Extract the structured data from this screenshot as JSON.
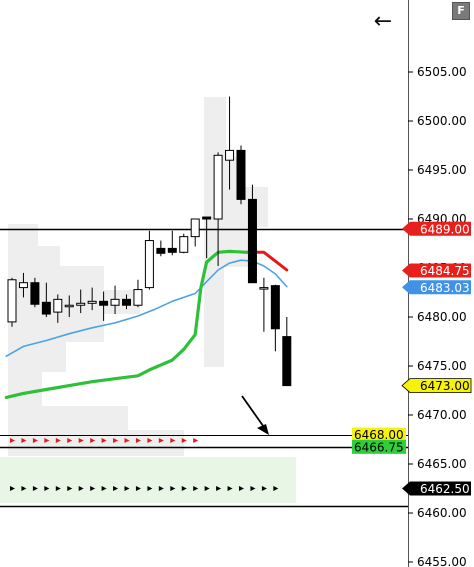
{
  "toolbar": {
    "back_icon": "left-arrow-icon",
    "back_glyph": "←",
    "format_button_label": "F"
  },
  "colors": {
    "ema_fast": "#e01b1b",
    "ema_mid": "#4aa3e8",
    "ema_slow": "#2fc03a",
    "level_black": "#000000",
    "tag_red": "#e8201c",
    "tag_blue": "#3f92e5",
    "tag_yellow": "#f6f20a",
    "tag_green": "#2fcf3a",
    "tag_black": "#000000",
    "profile_gray": "#eeeeee",
    "profile_green": "#e7f6e5"
  },
  "chart_data": {
    "type": "candlestick",
    "ylim": [
      6453.5,
      6510
    ],
    "y_ticks": [
      "6455.00",
      "6460.00",
      "6465.00",
      "6470.00",
      "6475.00",
      "6480.00",
      "6485.00",
      "6490.00",
      "6495.00",
      "6500.00",
      "6505.00"
    ],
    "candles": [
      {
        "o": 6479.5,
        "h": 6484.0,
        "l": 6479.0,
        "c": 6483.8
      },
      {
        "o": 6483.0,
        "h": 6484.5,
        "l": 6482.0,
        "c": 6483.5
      },
      {
        "o": 6483.5,
        "h": 6484.0,
        "l": 6481.0,
        "c": 6481.3
      },
      {
        "o": 6481.5,
        "h": 6483.5,
        "l": 6480.0,
        "c": 6480.3
      },
      {
        "o": 6480.5,
        "h": 6482.3,
        "l": 6479.4,
        "c": 6481.8
      },
      {
        "o": 6481.2,
        "h": 6482.2,
        "l": 6480.0,
        "c": 6481.2
      },
      {
        "o": 6481.2,
        "h": 6482.8,
        "l": 6480.4,
        "c": 6481.4
      },
      {
        "o": 6481.4,
        "h": 6483.0,
        "l": 6480.7,
        "c": 6481.6
      },
      {
        "o": 6481.6,
        "h": 6482.6,
        "l": 6479.6,
        "c": 6481.2
      },
      {
        "o": 6481.2,
        "h": 6483.2,
        "l": 6480.3,
        "c": 6481.8
      },
      {
        "o": 6481.8,
        "h": 6482.3,
        "l": 6480.8,
        "c": 6481.2
      },
      {
        "o": 6481.2,
        "h": 6483.8,
        "l": 6481.0,
        "c": 6482.8
      },
      {
        "o": 6483.0,
        "h": 6488.8,
        "l": 6482.8,
        "c": 6487.8
      },
      {
        "o": 6487.0,
        "h": 6487.8,
        "l": 6486.2,
        "c": 6486.5
      },
      {
        "o": 6487.0,
        "h": 6488.8,
        "l": 6486.3,
        "c": 6486.6
      },
      {
        "o": 6486.6,
        "h": 6488.5,
        "l": 6486.5,
        "c": 6488.2
      },
      {
        "o": 6488.2,
        "h": 6490.0,
        "l": 6487.2,
        "c": 6490.0
      },
      {
        "o": 6490.2,
        "h": 6490.2,
        "l": 6486.0,
        "c": 6490.0
      },
      {
        "o": 6490.0,
        "h": 6496.8,
        "l": 6485.2,
        "c": 6496.5
      },
      {
        "o": 6496.0,
        "h": 6502.5,
        "l": 6493.0,
        "c": 6497.0
      },
      {
        "o": 6497.0,
        "h": 6497.5,
        "l": 6491.5,
        "c": 6492.0
      },
      {
        "o": 6492.0,
        "h": 6493.5,
        "l": 6483.5,
        "c": 6483.5
      },
      {
        "o": 6483.0,
        "h": 6484.0,
        "l": 6478.5,
        "c": 6483.0
      },
      {
        "o": 6483.2,
        "h": 6483.3,
        "l": 6476.5,
        "c": 6478.8
      },
      {
        "o": 6478.0,
        "h": 6480.0,
        "l": 6473.0,
        "c": 6473.0
      }
    ],
    "series": [
      {
        "key": "ema_fast",
        "color": "#e01b1b",
        "points": [
          [
            20.5,
            6486.6
          ],
          [
            22,
            6486.6
          ],
          [
            23,
            6485.7
          ],
          [
            24,
            6484.8
          ]
        ]
      },
      {
        "key": "ema_mid",
        "color": "#4aa3e8",
        "points": [
          [
            -0.5,
            6476.0
          ],
          [
            1,
            6477.0
          ],
          [
            3,
            6477.6
          ],
          [
            5,
            6478.3
          ],
          [
            7,
            6478.9
          ],
          [
            9,
            6479.4
          ],
          [
            11,
            6480.1
          ],
          [
            12.5,
            6480.8
          ],
          [
            14,
            6481.6
          ],
          [
            16,
            6482.4
          ],
          [
            17,
            6483.6
          ],
          [
            18,
            6484.8
          ],
          [
            19,
            6485.5
          ],
          [
            20,
            6485.8
          ],
          [
            21,
            6485.7
          ],
          [
            22,
            6485.2
          ],
          [
            23,
            6484.4
          ],
          [
            24,
            6483.1
          ]
        ]
      },
      {
        "key": "ema_slow",
        "color": "#2fc03a",
        "points": [
          [
            -0.5,
            6471.8
          ],
          [
            1,
            6472.2
          ],
          [
            3,
            6472.6
          ],
          [
            5,
            6473.0
          ],
          [
            7,
            6473.4
          ],
          [
            9,
            6473.7
          ],
          [
            11,
            6474.0
          ],
          [
            12,
            6474.6
          ],
          [
            13,
            6475.1
          ],
          [
            14,
            6475.6
          ],
          [
            15,
            6476.7
          ],
          [
            16,
            6478.2
          ],
          [
            16.5,
            6483.0
          ],
          [
            17,
            6485.6
          ],
          [
            18,
            6486.6
          ],
          [
            19,
            6486.7
          ],
          [
            20.5,
            6486.6
          ]
        ]
      }
    ],
    "levels": [
      {
        "key": "hline_6489",
        "price": 6489.0,
        "color": "#000000",
        "width": 1.6
      },
      {
        "key": "hline_6468",
        "price": 6468.0,
        "color": "#000000",
        "width": 1.0
      },
      {
        "key": "hline_6466",
        "price": 6466.75,
        "color": "#000000",
        "width": 1.6
      },
      {
        "key": "hline_6460",
        "price": 6460.7,
        "color": "#000000",
        "width": 1.6
      }
    ],
    "markers": [
      {
        "key": "red_dots",
        "price": 6467.4,
        "color": "#e01b1b",
        "from": 0,
        "to": 16
      },
      {
        "key": "black_dots",
        "price": 6462.5,
        "color": "#000000",
        "from": 0,
        "to": 23
      }
    ],
    "price_tags": [
      {
        "key": "tag_6489",
        "label": "6489.00",
        "price": 6489.0,
        "bg": "#e8201c",
        "fg": "#ffffff",
        "shape": "arrow"
      },
      {
        "key": "tag_6484",
        "label": "6484.75",
        "price": 6484.75,
        "bg": "#e8201c",
        "fg": "#ffffff",
        "shape": "arrow"
      },
      {
        "key": "tag_6483",
        "label": "6483.03",
        "price": 6483.03,
        "bg": "#3f92e5",
        "fg": "#ffffff",
        "shape": "arrow"
      },
      {
        "key": "tag_6473",
        "label": "6473.00",
        "price": 6473.0,
        "bg": "#f6f20a",
        "fg": "#000000",
        "shape": "arrow"
      },
      {
        "key": "tag_6462",
        "label": "6462.50",
        "price": 6462.5,
        "bg": "#000000",
        "fg": "#ffffff",
        "shape": "arrow"
      },
      {
        "key": "tag_6468",
        "label": "6468.00",
        "price": 6468.0,
        "bg": "#f6f20a",
        "fg": "#000000",
        "shape": "box"
      },
      {
        "key": "tag_6466",
        "label": "6466.75",
        "price": 6466.75,
        "bg": "#2fcf3a",
        "fg": "#000000",
        "shape": "box"
      }
    ]
  }
}
